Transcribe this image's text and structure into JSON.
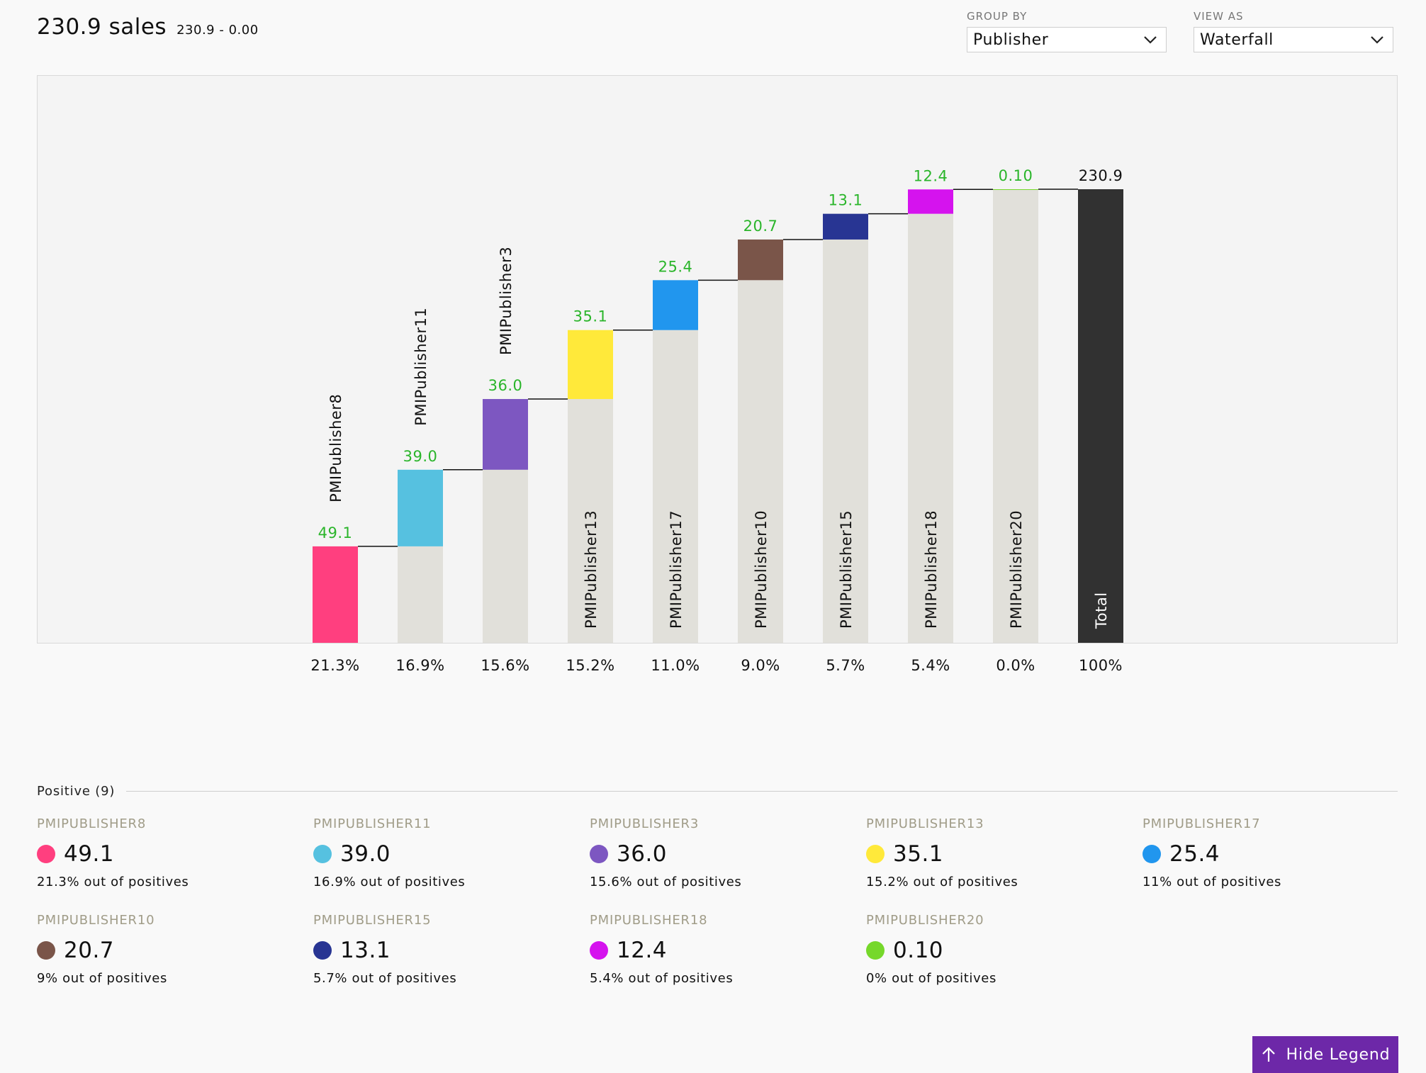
{
  "header": {
    "title": "230.9 sales",
    "subtitle": "230.9 - 0.00"
  },
  "controls": {
    "group_by": {
      "label": "GROUP BY",
      "value": "Publisher"
    },
    "view_as": {
      "label": "VIEW AS",
      "value": "Waterfall"
    }
  },
  "chart_data": {
    "type": "waterfall",
    "categories": [
      "PMIPublisher8",
      "PMIPublisher11",
      "PMIPublisher3",
      "PMIPublisher13",
      "PMIPublisher17",
      "PMIPublisher10",
      "PMIPublisher15",
      "PMIPublisher18",
      "PMIPublisher20"
    ],
    "values": [
      49.1,
      39.0,
      36.0,
      35.1,
      25.4,
      20.7,
      13.1,
      12.4,
      0.1
    ],
    "value_labels": [
      "49.1",
      "39.0",
      "36.0",
      "35.1",
      "25.4",
      "20.7",
      "13.1",
      "12.4",
      "0.10"
    ],
    "percentages": [
      "21.3%",
      "16.9%",
      "15.6%",
      "15.2%",
      "11.0%",
      "9.0%",
      "5.7%",
      "5.4%",
      "0.0%"
    ],
    "colors": [
      "#ff3f7f",
      "#56c1e0",
      "#7d57c1",
      "#ffe93a",
      "#2196ee",
      "#7a5549",
      "#283593",
      "#d513ee",
      "#76d82b"
    ],
    "total": {
      "label": "Total",
      "value": 230.9,
      "value_label": "230.9",
      "percentage": "100%",
      "color": "#313131"
    },
    "base_color": "#e1e0da",
    "value_label_color": "#2ab52a",
    "ylim": [
      0,
      230.9
    ],
    "grid": false
  },
  "legend": {
    "section_label": "Positive (9)",
    "items": [
      {
        "name": "PMIPUBLISHER8",
        "value": "49.1",
        "pct": "21.3% out of positives",
        "color": "#ff3f7f"
      },
      {
        "name": "PMIPUBLISHER11",
        "value": "39.0",
        "pct": "16.9% out of positives",
        "color": "#56c1e0"
      },
      {
        "name": "PMIPUBLISHER3",
        "value": "36.0",
        "pct": "15.6% out of positives",
        "color": "#7d57c1"
      },
      {
        "name": "PMIPUBLISHER13",
        "value": "35.1",
        "pct": "15.2% out of positives",
        "color": "#ffe93a"
      },
      {
        "name": "PMIPUBLISHER17",
        "value": "25.4",
        "pct": "11% out of positives",
        "color": "#2196ee"
      },
      {
        "name": "PMIPUBLISHER10",
        "value": "20.7",
        "pct": "9% out of positives",
        "color": "#7a5549"
      },
      {
        "name": "PMIPUBLISHER15",
        "value": "13.1",
        "pct": "5.7% out of positives",
        "color": "#283593"
      },
      {
        "name": "PMIPUBLISHER18",
        "value": "12.4",
        "pct": "5.4% out of positives",
        "color": "#d513ee"
      },
      {
        "name": "PMIPUBLISHER20",
        "value": "0.10",
        "pct": "0% out of positives",
        "color": "#76d82b"
      }
    ]
  },
  "hide_legend_button": {
    "label": "Hide Legend",
    "icon": "arrow-up-icon"
  }
}
